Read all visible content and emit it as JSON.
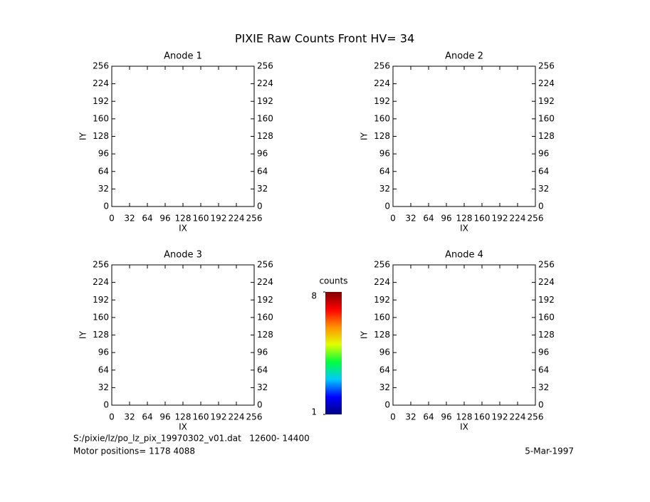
{
  "title": "PIXIE Raw Counts Front HV= 34",
  "footer": {
    "file": "S:/pixie/lz/po_lz_pix_19970302_v01.dat   12600- 14400",
    "motor": "Motor positions= 1178 4088",
    "date": "5-Mar-1997"
  },
  "chart_data": [
    {
      "type": "heatmap",
      "title": "Anode 1",
      "x_label": "IX",
      "y_label": "IY",
      "xlim": [
        0,
        256
      ],
      "ylim": [
        0,
        256
      ],
      "xticks": [
        0,
        32,
        64,
        96,
        128,
        160,
        192,
        224,
        256
      ],
      "yticks": [
        0,
        32,
        64,
        96,
        128,
        160,
        192,
        224,
        256
      ]
    },
    {
      "type": "heatmap",
      "title": "Anode 2",
      "x_label": "IX",
      "y_label": "IY",
      "xlim": [
        0,
        256
      ],
      "ylim": [
        0,
        256
      ],
      "xticks": [
        0,
        32,
        64,
        96,
        128,
        160,
        192,
        224,
        256
      ],
      "yticks": [
        0,
        32,
        64,
        96,
        128,
        160,
        192,
        224,
        256
      ]
    },
    {
      "type": "heatmap",
      "title": "Anode 3",
      "x_label": "IX",
      "y_label": "IY",
      "xlim": [
        0,
        256
      ],
      "ylim": [
        0,
        256
      ],
      "xticks": [
        0,
        32,
        64,
        96,
        128,
        160,
        192,
        224,
        256
      ],
      "yticks": [
        0,
        32,
        64,
        96,
        128,
        160,
        192,
        224,
        256
      ]
    },
    {
      "type": "heatmap",
      "title": "Anode 4",
      "x_label": "IX",
      "y_label": "IY",
      "xlim": [
        0,
        256
      ],
      "ylim": [
        0,
        256
      ],
      "xticks": [
        0,
        32,
        64,
        96,
        128,
        160,
        192,
        224,
        256
      ],
      "yticks": [
        0,
        32,
        64,
        96,
        128,
        160,
        192,
        224,
        256
      ]
    },
    {
      "type": "colorbar",
      "title": "counts",
      "ylim": [
        1,
        8
      ],
      "yticks": [
        1,
        8
      ],
      "colors": [
        "#00007f",
        "#0000ff",
        "#00c8ff",
        "#00ff40",
        "#e0ff00",
        "#ff9000",
        "#ff0000",
        "#7f0000"
      ]
    }
  ]
}
